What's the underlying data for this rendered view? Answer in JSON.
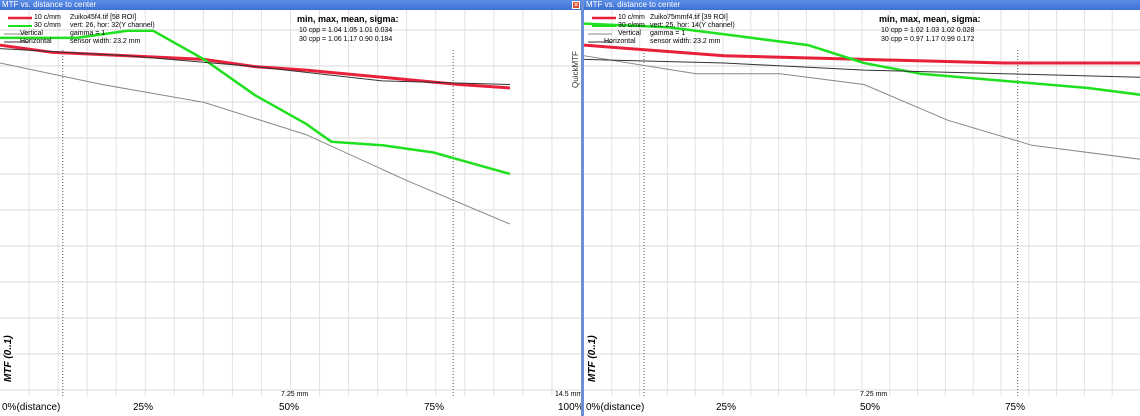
{
  "window_title": "MTF vs. distance to center",
  "close_glyph": "✕",
  "left": {
    "legend": [
      "10 c/mm",
      "30 c/mm",
      "Vertical",
      "Horizontal"
    ],
    "info": [
      "Zuiko45f4.tif [58 ROI]",
      "vert: 26, hor: 32(Y channel)",
      "gamma = 1",
      "sensor width: 23.2 mm"
    ],
    "stats_title": "min, max, mean, sigma:",
    "stats": [
      "10 cpp = 1.04 1.05 1.01 0.034",
      "30 cpp = 1.06 1.17 0.90 0.184"
    ],
    "quick_label": "QuickMTF",
    "mid_mm": "7.25 mm",
    "end_mm": "14.5 mm",
    "ylabel": "MTF (0..1)",
    "xticks": [
      "0%(distance)",
      "25%",
      "50%",
      "75%",
      "100%"
    ]
  },
  "right": {
    "legend": [
      "10 c/mm",
      "30 c/mm",
      "Vertical",
      "Horizontal"
    ],
    "info": [
      "Zuiko75mmf4.tif [39 ROI]",
      "vert: 25, hor: 14(Y channel)",
      "gamma = 1",
      "sensor width: 23.2 mm"
    ],
    "stats_title": "min, max, mean, sigma:",
    "stats": [
      "10 cpp = 1.02 1.03 1.02 0.028",
      "30 cpp = 0.97 1.17 0.99 0.172"
    ],
    "mid_mm": "7.25 mm",
    "ylabel": "MTF (0..1)",
    "xticks": [
      "0%(distance)",
      "25%",
      "50%",
      "75%"
    ]
  },
  "colors": {
    "c10": "#e8203a",
    "c30": "#1fe01f",
    "gray": "#888888",
    "dark": "#333333"
  },
  "chart_data": [
    {
      "type": "line",
      "xlabel": "",
      "ylabel": "MTF (0..1)",
      "x_range": [
        0,
        100
      ],
      "y_range": [
        0,
        1.05
      ],
      "series": [
        {
          "name": "10 c/mm",
          "x": [
            0,
            10,
            25,
            40,
            50,
            60,
            75,
            90,
            100
          ],
          "y": [
            0.98,
            0.96,
            0.95,
            0.94,
            0.92,
            0.91,
            0.89,
            0.87,
            0.86
          ]
        },
        {
          "name": "30 c/mm",
          "x": [
            0,
            15,
            25,
            30,
            40,
            50,
            60,
            65,
            75,
            85,
            90,
            100
          ],
          "y": [
            1.0,
            1.0,
            1.02,
            1.02,
            0.94,
            0.84,
            0.76,
            0.71,
            0.7,
            0.68,
            0.66,
            0.62
          ]
        },
        {
          "name": "Vertical",
          "x": [
            0,
            20,
            40,
            60,
            80,
            100
          ],
          "y": [
            0.93,
            0.87,
            0.82,
            0.73,
            0.6,
            0.48
          ]
        },
        {
          "name": "Horizontal",
          "x": [
            0,
            25,
            50,
            75,
            100
          ],
          "y": [
            0.97,
            0.95,
            0.92,
            0.88,
            0.87
          ]
        }
      ]
    },
    {
      "type": "line",
      "xlabel": "",
      "ylabel": "MTF (0..1)",
      "x_range": [
        0,
        100
      ],
      "y_range": [
        0,
        1.05
      ],
      "series": [
        {
          "name": "10 c/mm",
          "x": [
            0,
            25,
            50,
            75,
            100
          ],
          "y": [
            0.98,
            0.95,
            0.94,
            0.93,
            0.93
          ]
        },
        {
          "name": "30 c/mm",
          "x": [
            0,
            15,
            25,
            40,
            50,
            60,
            75,
            90,
            100
          ],
          "y": [
            1.04,
            1.03,
            1.01,
            0.98,
            0.93,
            0.9,
            0.88,
            0.86,
            0.84
          ]
        },
        {
          "name": "Vertical",
          "x": [
            0,
            20,
            35,
            50,
            65,
            80,
            100
          ],
          "y": [
            0.95,
            0.9,
            0.9,
            0.87,
            0.77,
            0.7,
            0.66
          ]
        },
        {
          "name": "Horizontal",
          "x": [
            0,
            25,
            50,
            75,
            100
          ],
          "y": [
            0.94,
            0.93,
            0.91,
            0.9,
            0.89
          ]
        }
      ]
    }
  ]
}
